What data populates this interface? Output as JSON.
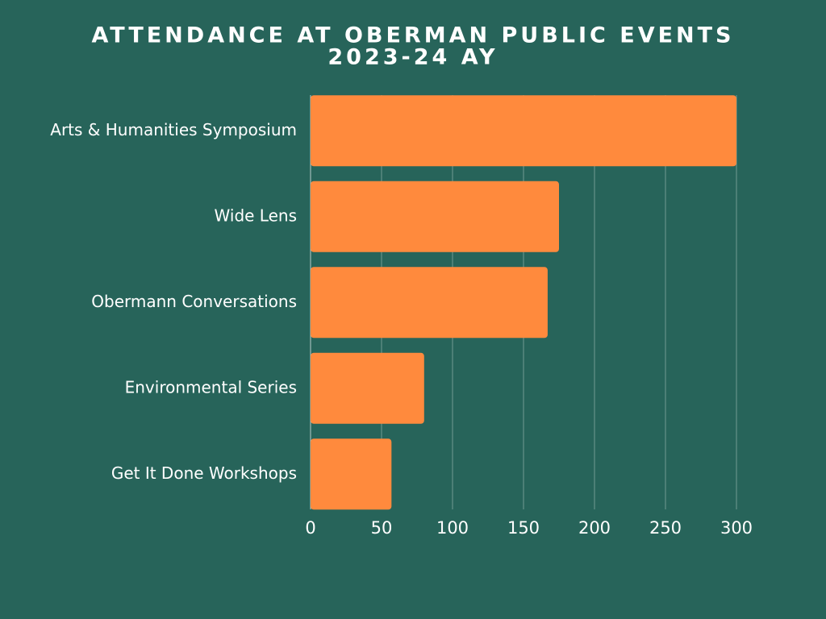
{
  "chart_data": {
    "type": "hbar",
    "title": "ATTENDANCE AT OBERMAN PUBLIC EVENTS",
    "subtitle": "2023-24 AY",
    "categories": [
      "Arts & Humanities Symposium",
      "Wide Lens",
      "Obermann Conversations",
      "Environmental Series",
      "Get It Done Workshops"
    ],
    "values": [
      300,
      175,
      167,
      80,
      57
    ],
    "color": "#ff8a3d",
    "xlim": [
      0,
      300
    ],
    "xticks": [
      0,
      50,
      100,
      150,
      200,
      250,
      300
    ],
    "grid": true
  }
}
